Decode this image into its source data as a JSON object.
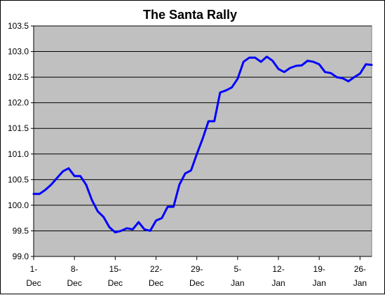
{
  "chart_data": {
    "type": "line",
    "title": "The Santa Rally",
    "xlabel": "",
    "ylabel": "",
    "ylim": [
      99.0,
      103.5
    ],
    "yticks": [
      "99.0",
      "99.5",
      "100.0",
      "100.5",
      "101.0",
      "101.5",
      "102.0",
      "102.5",
      "103.0",
      "103.5"
    ],
    "ytick_values": [
      99.0,
      99.5,
      100.0,
      100.5,
      101.0,
      101.5,
      102.0,
      102.5,
      103.0,
      103.5
    ],
    "xlim": [
      0,
      58
    ],
    "xtick_positions": [
      0,
      7,
      14,
      21,
      28,
      35,
      42,
      49,
      56
    ],
    "xtick_labels": [
      [
        "1-",
        "Dec"
      ],
      [
        "8-",
        "Dec"
      ],
      [
        "15-",
        "Dec"
      ],
      [
        "22-",
        "Dec"
      ],
      [
        "29-",
        "Dec"
      ],
      [
        "5-",
        "Jan"
      ],
      [
        "12-",
        "Jan"
      ],
      [
        "19-",
        "Jan"
      ],
      [
        "26-",
        "Jan"
      ]
    ],
    "grid": "horizontal",
    "legend": "none",
    "colors": {
      "line": "#0000ff",
      "plot_bg": "#c0c0c0",
      "grid": "#000000"
    },
    "series": [
      {
        "x": [
          0,
          1,
          2,
          3,
          4,
          5,
          6,
          7,
          8,
          9,
          10,
          11,
          12,
          13,
          14,
          15,
          16,
          17,
          18,
          19,
          20,
          21,
          22,
          23,
          24,
          25,
          26,
          27,
          28,
          29,
          30,
          31,
          32,
          33,
          34,
          35,
          36,
          37,
          38,
          39,
          40,
          41,
          42,
          43,
          44,
          45,
          46,
          47,
          48,
          49,
          50,
          51,
          52,
          53,
          54,
          55,
          56,
          57,
          58
        ],
        "values": [
          100.22,
          100.22,
          100.3,
          100.4,
          100.53,
          100.66,
          100.72,
          100.57,
          100.57,
          100.4,
          100.1,
          99.88,
          99.77,
          99.57,
          99.47,
          99.5,
          99.55,
          99.53,
          99.67,
          99.53,
          99.5,
          99.7,
          99.75,
          99.97,
          99.97,
          100.4,
          100.62,
          100.68,
          101.0,
          101.3,
          101.64,
          101.64,
          102.2,
          102.24,
          102.3,
          102.47,
          102.8,
          102.88,
          102.88,
          102.8,
          102.9,
          102.82,
          102.66,
          102.6,
          102.68,
          102.72,
          102.73,
          102.82,
          102.8,
          102.75,
          102.6,
          102.58,
          102.5,
          102.48,
          102.42,
          102.5,
          102.57,
          102.75,
          102.74
        ]
      }
    ]
  }
}
